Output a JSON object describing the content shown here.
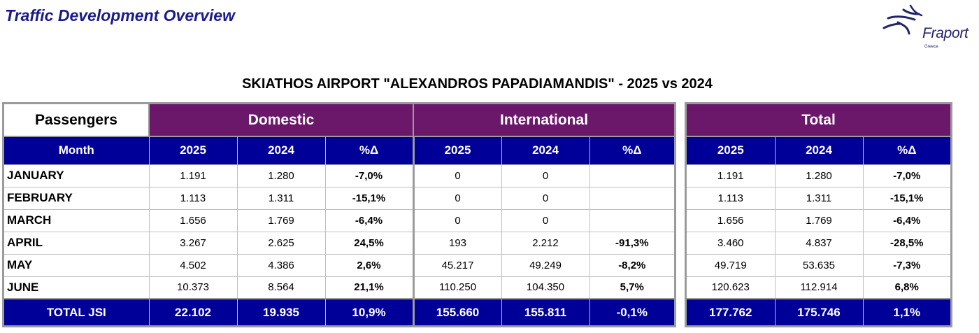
{
  "header": {
    "title": "Traffic Development Overview",
    "logo_text": "Fraport",
    "logo_sub": "Greece",
    "report_title": "SKIATHOS AIRPORT \"ALEXANDROS PAPADIAMANDIS\" - 2025 vs 2024"
  },
  "table": {
    "corner_label": "Passengers",
    "groups": [
      "Domestic",
      "International",
      "Total"
    ],
    "month_label": "Month",
    "col_labels": [
      "2025",
      "2024",
      "%Δ"
    ],
    "rows": [
      {
        "month": "JANUARY",
        "dom": [
          "1.191",
          "1.280",
          "-7,0%"
        ],
        "intl": [
          "0",
          "0",
          ""
        ],
        "tot": [
          "1.191",
          "1.280",
          "-7,0%"
        ]
      },
      {
        "month": "FEBRUARY",
        "dom": [
          "1.113",
          "1.311",
          "-15,1%"
        ],
        "intl": [
          "0",
          "0",
          ""
        ],
        "tot": [
          "1.113",
          "1.311",
          "-15,1%"
        ]
      },
      {
        "month": "MARCH",
        "dom": [
          "1.656",
          "1.769",
          "-6,4%"
        ],
        "intl": [
          "0",
          "0",
          ""
        ],
        "tot": [
          "1.656",
          "1.769",
          "-6,4%"
        ]
      },
      {
        "month": "APRIL",
        "dom": [
          "3.267",
          "2.625",
          "24,5%"
        ],
        "intl": [
          "193",
          "2.212",
          "-91,3%"
        ],
        "tot": [
          "3.460",
          "4.837",
          "-28,5%"
        ]
      },
      {
        "month": "MAY",
        "dom": [
          "4.502",
          "4.386",
          "2,6%"
        ],
        "intl": [
          "45.217",
          "49.249",
          "-8,2%"
        ],
        "tot": [
          "49.719",
          "53.635",
          "-7,3%"
        ]
      },
      {
        "month": "JUNE",
        "dom": [
          "10.373",
          "8.564",
          "21,1%"
        ],
        "intl": [
          "110.250",
          "104.350",
          "5,7%"
        ],
        "tot": [
          "120.623",
          "112.914",
          "6,8%"
        ]
      }
    ],
    "total": {
      "label": "TOTAL JSI",
      "dom": [
        "22.102",
        "19.935",
        "10,9%"
      ],
      "intl": [
        "155.660",
        "155.811",
        "-0,1%"
      ],
      "tot": [
        "177.762",
        "175.746",
        "1,1%"
      ]
    }
  },
  "colors": {
    "group_header": "#6b176a",
    "column_header": "#000099",
    "title": "#1a1a8c"
  }
}
